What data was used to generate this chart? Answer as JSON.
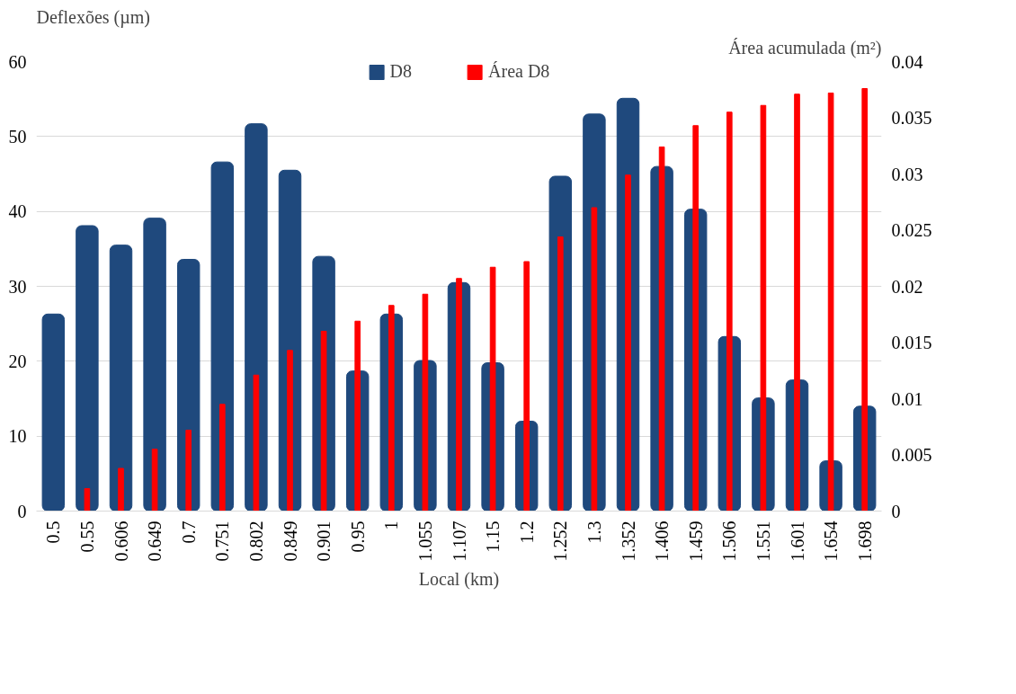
{
  "chart_data": {
    "type": "bar",
    "xlabel": "Local (km)",
    "ylabel": "Deflexões (µm)",
    "y2label": "Área acumulada (m²)",
    "categories": [
      "0.5",
      "0.55",
      "0.606",
      "0.649",
      "0.7",
      "0.751",
      "0.802",
      "0.849",
      "0.901",
      "0.95",
      "1",
      "1.055",
      "1.107",
      "1.15",
      "1.2",
      "1.252",
      "1.3",
      "1.352",
      "1.406",
      "1.459",
      "1.506",
      "1.551",
      "1.601",
      "1.654",
      "1.698"
    ],
    "series": [
      {
        "name": "D8",
        "color": "#1f497d",
        "values": [
          26.3,
          38.1,
          35.5,
          39.1,
          33.6,
          46.6,
          51.7,
          45.5,
          34.0,
          18.7,
          26.3,
          20.1,
          30.5,
          19.8,
          12.0,
          44.7,
          53.0,
          55.1,
          46.0,
          40.3,
          23.3,
          15.1,
          17.5,
          6.7,
          14.0
        ]
      },
      {
        "name": "Área D8",
        "color": "#ff0000",
        "axis": "y2",
        "values": [
          0,
          0.002,
          0.0038,
          0.0055,
          0.0072,
          0.0095,
          0.0121,
          0.0143,
          0.016,
          0.0169,
          0.0183,
          0.0193,
          0.0207,
          0.0217,
          0.0222,
          0.0244,
          0.027,
          0.0299,
          0.0324,
          0.0343,
          0.0355,
          0.0361,
          0.0371,
          0.0372,
          0.0376
        ]
      }
    ],
    "ylim": [
      0,
      60
    ],
    "yticks": [
      0,
      10,
      20,
      30,
      40,
      50,
      60
    ],
    "y2lim": [
      0,
      0.04
    ],
    "y2ticks": [
      0,
      0.005,
      0.01,
      0.015,
      0.02,
      0.025,
      0.03,
      0.035,
      0.04
    ],
    "grid": "y",
    "legend": "top"
  }
}
